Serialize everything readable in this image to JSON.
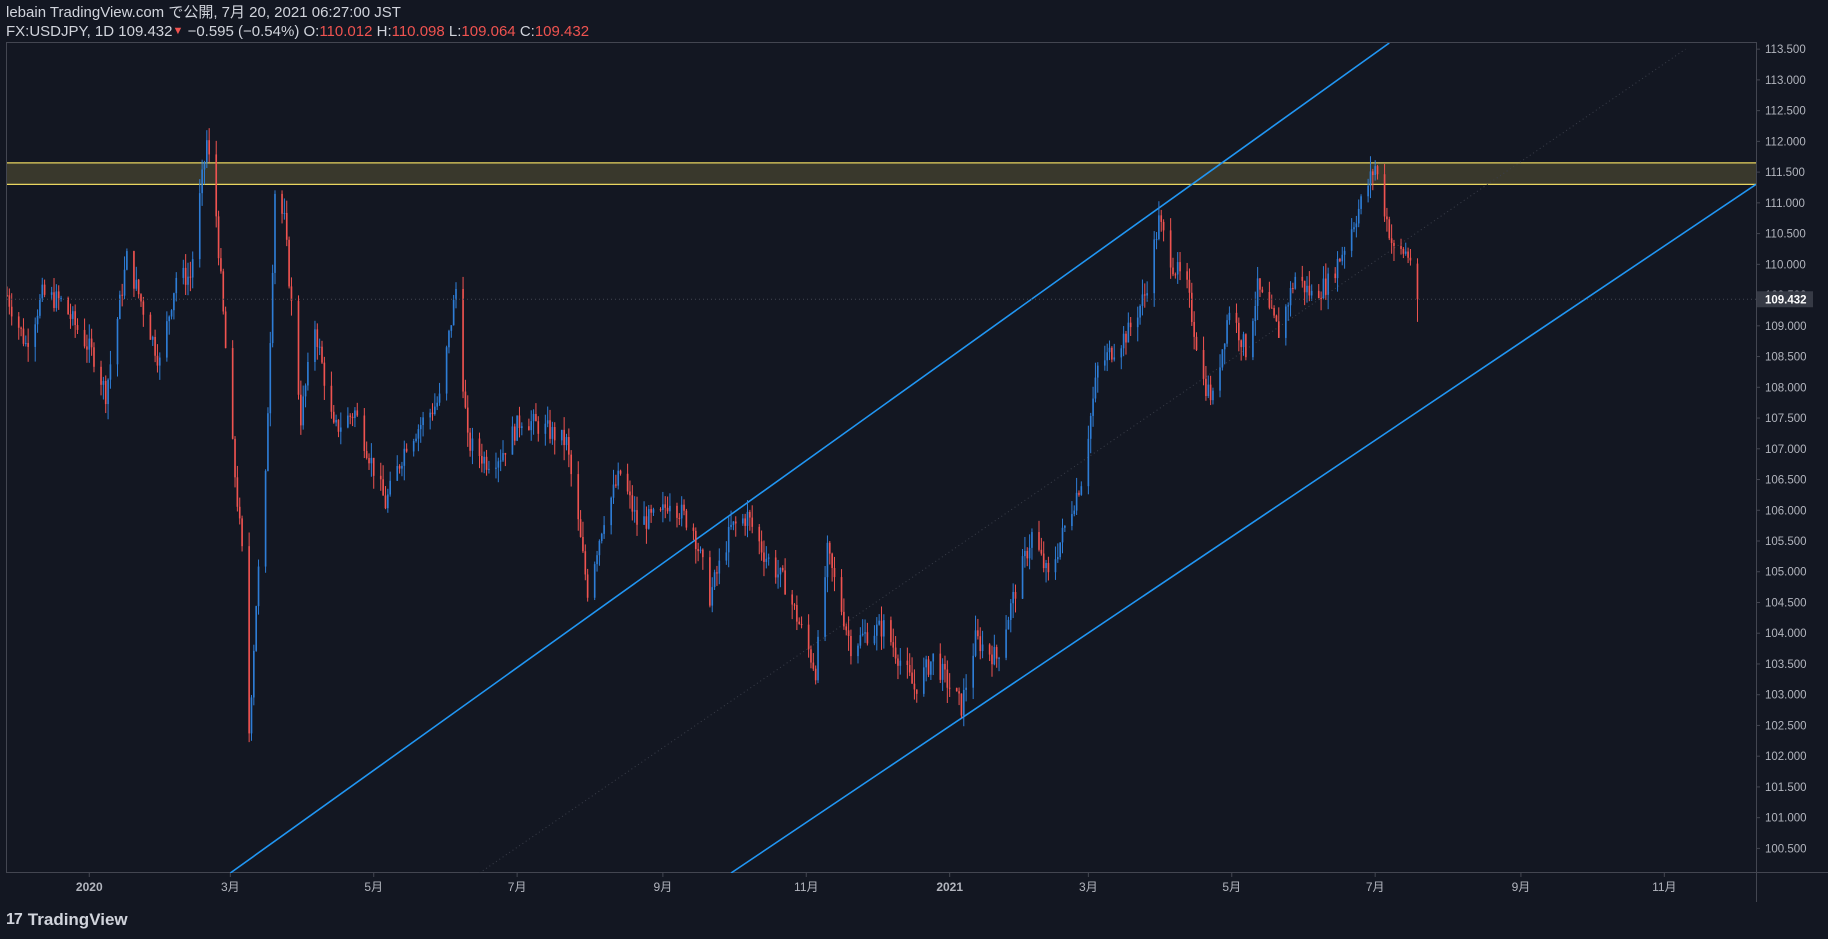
{
  "header": {
    "title_line": "lebain TradingView.com で公開, 7月 20, 2021 06:27:00 JST",
    "symbol": "FX:USDJPY, 1D",
    "last": "109.432",
    "change": "−0.595 (−0.54%)",
    "o_label": "O:",
    "o_value": "110.012",
    "h_label": "H:",
    "h_value": "110.098",
    "l_label": "L:",
    "l_value": "109.064",
    "c_label": "C:",
    "c_value": "109.432"
  },
  "footer": {
    "brand": "TradingView",
    "logo_glyph": "17"
  },
  "colors": {
    "bg": "#131722",
    "up": "#2e7dd6",
    "down": "#ef5350",
    "trend": "#2196f3",
    "zone": "#e9d560",
    "axis": "#787b86"
  },
  "chart_data": {
    "type": "candlestick",
    "symbol": "FX:USDJPY",
    "interval": "1D",
    "last_price_label": "109.432",
    "y_ticks": [
      "113.500",
      "113.000",
      "112.500",
      "112.000",
      "111.500",
      "111.000",
      "110.500",
      "110.000",
      "109.500",
      "109.000",
      "108.500",
      "108.000",
      "107.500",
      "107.000",
      "106.500",
      "106.000",
      "105.500",
      "105.000",
      "104.500",
      "104.000",
      "103.500",
      "103.000",
      "102.500",
      "102.000",
      "101.500",
      "101.000",
      "100.500"
    ],
    "x_ticks": [
      {
        "label": "2020",
        "date": "2020-01-01"
      },
      {
        "label": "3月",
        "date": "2020-03-01"
      },
      {
        "label": "5月",
        "date": "2020-05-01"
      },
      {
        "label": "7月",
        "date": "2020-07-01"
      },
      {
        "label": "9月",
        "date": "2020-09-01"
      },
      {
        "label": "11月",
        "date": "2020-11-01"
      },
      {
        "label": "2021",
        "date": "2021-01-01"
      },
      {
        "label": "3月",
        "date": "2021-03-01"
      },
      {
        "label": "5月",
        "date": "2021-05-01"
      },
      {
        "label": "7月",
        "date": "2021-07-01"
      },
      {
        "label": "9月",
        "date": "2021-09-01"
      },
      {
        "label": "11月",
        "date": "2021-11-01"
      }
    ],
    "ylim": [
      100.1,
      113.6
    ],
    "xlim": [
      "2019-11-27",
      "2021-12-10"
    ],
    "price_path": [
      [
        "2019-11-27",
        109.5
      ],
      [
        "2019-12-05",
        108.7
      ],
      [
        "2019-12-12",
        109.5
      ],
      [
        "2019-12-20",
        109.4
      ],
      [
        "2020-01-03",
        108.5
      ],
      [
        "2020-01-08",
        107.9
      ],
      [
        "2020-01-17",
        110.1
      ],
      [
        "2020-01-23",
        109.4
      ],
      [
        "2020-01-31",
        108.4
      ],
      [
        "2020-02-07",
        109.8
      ],
      [
        "2020-02-13",
        109.8
      ],
      [
        "2020-02-20",
        112.0
      ],
      [
        "2020-02-24",
        110.8
      ],
      [
        "2020-03-02",
        107.0
      ],
      [
        "2020-03-06",
        105.3
      ],
      [
        "2020-03-09",
        102.4
      ],
      [
        "2020-03-12",
        104.5
      ],
      [
        "2020-03-16",
        106.5
      ],
      [
        "2020-03-20",
        111.2
      ],
      [
        "2020-03-24",
        110.7
      ],
      [
        "2020-03-31",
        107.5
      ],
      [
        "2020-04-06",
        109.0
      ],
      [
        "2020-04-14",
        107.3
      ],
      [
        "2020-04-23",
        107.6
      ],
      [
        "2020-05-06",
        106.1
      ],
      [
        "2020-05-15",
        107.1
      ],
      [
        "2020-05-29",
        107.8
      ],
      [
        "2020-06-05",
        109.6
      ],
      [
        "2020-06-10",
        107.1
      ],
      [
        "2020-06-18",
        106.8
      ],
      [
        "2020-06-24",
        106.9
      ],
      [
        "2020-07-03",
        107.5
      ],
      [
        "2020-07-14",
        107.3
      ],
      [
        "2020-07-22",
        107.1
      ],
      [
        "2020-07-31",
        104.7
      ],
      [
        "2020-08-07",
        105.9
      ],
      [
        "2020-08-14",
        106.6
      ],
      [
        "2020-08-21",
        105.8
      ],
      [
        "2020-08-31",
        105.9
      ],
      [
        "2020-09-04",
        106.2
      ],
      [
        "2020-09-14",
        105.7
      ],
      [
        "2020-09-21",
        104.6
      ],
      [
        "2020-09-30",
        105.7
      ],
      [
        "2020-10-07",
        105.9
      ],
      [
        "2020-10-14",
        105.3
      ],
      [
        "2020-10-23",
        104.8
      ],
      [
        "2020-11-05",
        103.4
      ],
      [
        "2020-11-10",
        105.3
      ],
      [
        "2020-11-20",
        103.8
      ],
      [
        "2020-11-27",
        104.0
      ],
      [
        "2020-12-04",
        104.1
      ],
      [
        "2020-12-17",
        103.1
      ],
      [
        "2020-12-25",
        103.6
      ],
      [
        "2021-01-06",
        102.8
      ],
      [
        "2021-01-12",
        103.9
      ],
      [
        "2021-01-21",
        103.6
      ],
      [
        "2021-01-29",
        104.7
      ],
      [
        "2021-02-05",
        105.6
      ],
      [
        "2021-02-12",
        104.9
      ],
      [
        "2021-02-18",
        105.6
      ],
      [
        "2021-02-26",
        106.5
      ],
      [
        "2021-03-05",
        108.3
      ],
      [
        "2021-03-11",
        108.6
      ],
      [
        "2021-03-18",
        108.9
      ],
      [
        "2021-03-25",
        109.5
      ],
      [
        "2021-03-31",
        110.7
      ],
      [
        "2021-04-06",
        110.0
      ],
      [
        "2021-04-12",
        109.6
      ],
      [
        "2021-04-19",
        108.1
      ],
      [
        "2021-04-23",
        107.8
      ],
      [
        "2021-04-30",
        109.3
      ],
      [
        "2021-05-07",
        108.6
      ],
      [
        "2021-05-12",
        109.6
      ],
      [
        "2021-05-17",
        109.2
      ],
      [
        "2021-05-21",
        108.9
      ],
      [
        "2021-05-28",
        109.8
      ],
      [
        "2021-06-04",
        109.5
      ],
      [
        "2021-06-11",
        109.7
      ],
      [
        "2021-06-17",
        110.2
      ],
      [
        "2021-06-24",
        110.9
      ],
      [
        "2021-07-01",
        111.6
      ],
      [
        "2021-07-05",
        110.9
      ],
      [
        "2021-07-09",
        110.2
      ],
      [
        "2021-07-14",
        110.2
      ],
      [
        "2021-07-16",
        110.1
      ],
      [
        "2021-07-19",
        109.4
      ]
    ],
    "last_bar": {
      "date": "2021-07-19",
      "open": 110.012,
      "high": 110.098,
      "low": 109.064,
      "close": 109.432
    },
    "annotations": [
      {
        "type": "horizontal_zone",
        "from": 111.3,
        "to": 111.65,
        "color": "#e9d560"
      },
      {
        "type": "trendline",
        "p1": [
          "2020-03-01",
          100.1
        ],
        "p2": [
          "2021-07-07",
          113.6
        ],
        "color": "#2196f3"
      },
      {
        "type": "trendline",
        "p1": [
          "2020-09-30",
          100.1
        ],
        "p2": [
          "2021-12-10",
          111.3
        ],
        "color": "#2196f3"
      },
      {
        "type": "trendline",
        "p1": [
          "2020-06-15",
          100.1
        ],
        "p2": [
          "2021-11-10",
          113.5
        ],
        "color": "#3a3e4a",
        "style": "dotted"
      }
    ],
    "xlabel": "",
    "ylabel": "",
    "grid": false,
    "legend": "none"
  }
}
